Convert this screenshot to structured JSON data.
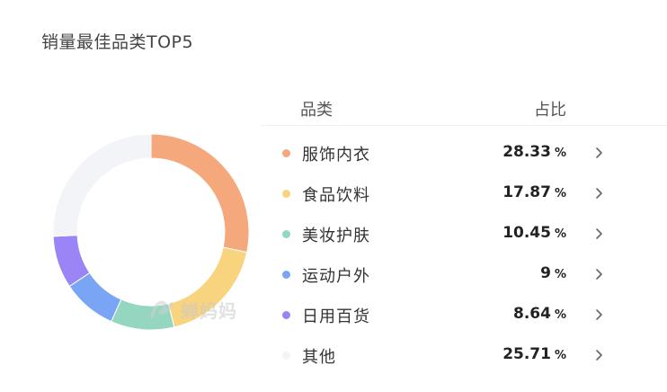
{
  "title": "销量最佳品类TOP5",
  "table": {
    "header_category": "品类",
    "header_share": "占比"
  },
  "watermark": "蝉妈妈",
  "colors": {
    "服饰内衣": "#f4a87c",
    "食品饮料": "#f9d47e",
    "美妆护肤": "#94d6c0",
    "运动户外": "#7aa5f5",
    "日用百货": "#9b84f5",
    "其他": "#f3f4f8"
  },
  "chart_data": {
    "type": "pie",
    "donut": true,
    "title": "销量最佳品类TOP5",
    "unit": "%",
    "categories": [
      "服饰内衣",
      "食品饮料",
      "美妆护肤",
      "运动户外",
      "日用百货",
      "其他"
    ],
    "values": [
      28.33,
      17.87,
      10.45,
      9,
      8.64,
      25.71
    ],
    "display_values": [
      "28.33",
      "17.87",
      "10.45",
      "9",
      "8.64",
      "25.71"
    ]
  }
}
